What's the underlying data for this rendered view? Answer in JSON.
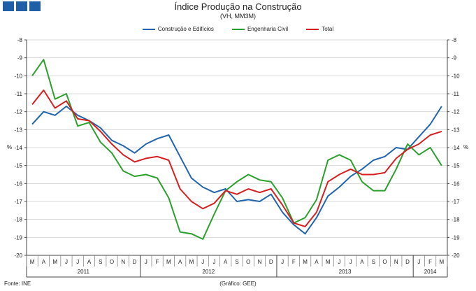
{
  "header": {
    "title": "Índice Produção na Construção",
    "subtitle": "(VH, MM3M)"
  },
  "footer": {
    "source": "Fonte: INE",
    "credit": "(Gráfico: GEE)"
  },
  "colors": {
    "construcao": "#2166ac",
    "engenharia": "#2ca02c",
    "total": "#d62020",
    "grid": "#d8d8d8",
    "axis": "#444444"
  },
  "chart_data": {
    "type": "line",
    "title": "Índice Produção na Construção",
    "subtitle": "(VH, MM3M)",
    "ylabel": "%",
    "ylim": [
      -20,
      -8
    ],
    "y_ticks": [
      "-8",
      "-9",
      "-10",
      "-11",
      "-12",
      "-13",
      "-14",
      "-15",
      "-16",
      "-17",
      "-18",
      "-19",
      "-20"
    ],
    "grid": true,
    "legend_position": "top-center",
    "x": [
      "M",
      "A",
      "M",
      "J",
      "J",
      "A",
      "S",
      "O",
      "N",
      "D",
      "J",
      "F",
      "M",
      "A",
      "M",
      "J",
      "J",
      "A",
      "S",
      "O",
      "N",
      "D",
      "J",
      "F",
      "M",
      "A",
      "M",
      "J",
      "J",
      "A",
      "S",
      "O",
      "N",
      "D",
      "J",
      "F",
      "M"
    ],
    "years": [
      {
        "label": "2011",
        "start": 0,
        "end": 9
      },
      {
        "label": "2012",
        "start": 10,
        "end": 21
      },
      {
        "label": "2013",
        "start": 22,
        "end": 33
      },
      {
        "label": "2014",
        "start": 34,
        "end": 36
      }
    ],
    "series": [
      {
        "name": "Construção e Edifícios",
        "color": "#2166ac",
        "values": [
          -12.7,
          -12.0,
          -12.2,
          -11.7,
          -12.2,
          -12.5,
          -12.9,
          -13.6,
          -13.9,
          -14.3,
          -13.8,
          -13.5,
          -13.3,
          -14.5,
          -15.7,
          -16.2,
          -16.5,
          -16.3,
          -17.0,
          -16.9,
          -17.0,
          -16.6,
          -17.6,
          -18.3,
          -18.8,
          -17.9,
          -16.7,
          -16.2,
          -15.6,
          -15.2,
          -14.7,
          -14.5,
          -14.0,
          -14.1,
          -13.4,
          -12.7,
          -11.7
        ]
      },
      {
        "name": "Engenharia Civil",
        "color": "#2ca02c",
        "values": [
          -10.0,
          -9.1,
          -11.3,
          -11.0,
          -12.8,
          -12.6,
          -13.7,
          -14.3,
          -15.3,
          -15.6,
          -15.5,
          -15.7,
          -16.8,
          -18.7,
          -18.8,
          -19.1,
          -17.7,
          -16.4,
          -15.9,
          -15.5,
          -15.8,
          -15.9,
          -16.8,
          -18.2,
          -17.9,
          -16.9,
          -14.7,
          -14.4,
          -14.7,
          -15.9,
          -16.4,
          -16.4,
          -15.2,
          -13.8,
          -14.4,
          -14.0,
          -15.0
        ]
      },
      {
        "name": "Total",
        "color": "#d62020",
        "values": [
          -11.6,
          -10.8,
          -11.8,
          -11.4,
          -12.4,
          -12.5,
          -13.1,
          -13.8,
          -14.4,
          -14.8,
          -14.6,
          -14.5,
          -14.7,
          -16.3,
          -17.0,
          -17.4,
          -17.1,
          -16.4,
          -16.6,
          -16.3,
          -16.5,
          -16.3,
          -17.2,
          -18.2,
          -18.4,
          -17.6,
          -15.9,
          -15.5,
          -15.2,
          -15.5,
          -15.5,
          -15.4,
          -14.6,
          -14.1,
          -13.8,
          -13.3,
          -13.1
        ]
      }
    ]
  }
}
